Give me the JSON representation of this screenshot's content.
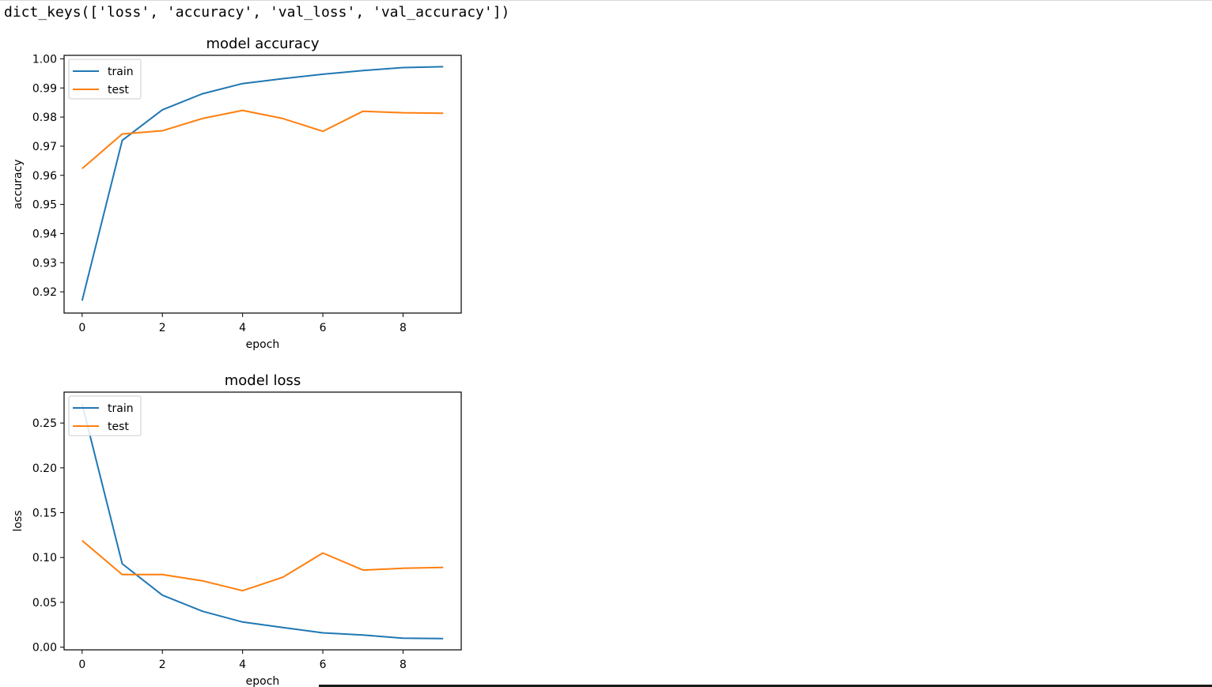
{
  "output": {
    "text": "dict_keys(['loss', 'accuracy', 'val_loss', 'val_accuracy'])"
  },
  "colors": {
    "train": "#1f77b4",
    "test": "#ff7f0e",
    "frame": "#000000",
    "background": "#ffffff"
  },
  "chart_data": [
    {
      "type": "line",
      "title": "model accuracy",
      "xlabel": "epoch",
      "ylabel": "accuracy",
      "x": [
        0,
        1,
        2,
        3,
        4,
        5,
        6,
        7,
        8,
        9
      ],
      "xlim": [
        -0.45,
        9.45
      ],
      "ylim": [
        0.9127,
        1.0012
      ],
      "xticks": [
        0,
        2,
        4,
        6,
        8
      ],
      "xtick_labels": [
        "0",
        "2",
        "4",
        "6",
        "8"
      ],
      "yticks": [
        0.92,
        0.93,
        0.94,
        0.95,
        0.96,
        0.97,
        0.98,
        0.99,
        1.0
      ],
      "ytick_labels": [
        "0.92",
        "0.93",
        "0.94",
        "0.95",
        "0.96",
        "0.97",
        "0.98",
        "0.99",
        "1.00"
      ],
      "grid": false,
      "legend_position": "upper left",
      "series": [
        {
          "name": "train",
          "color": "#1f77b4",
          "values": [
            0.917,
            0.972,
            0.9825,
            0.988,
            0.9915,
            0.9932,
            0.9947,
            0.996,
            0.997,
            0.9973
          ]
        },
        {
          "name": "test",
          "color": "#ff7f0e",
          "values": [
            0.9623,
            0.9742,
            0.9753,
            0.9795,
            0.9823,
            0.9795,
            0.9751,
            0.982,
            0.9815,
            0.9813
          ]
        }
      ]
    },
    {
      "type": "line",
      "title": "model loss",
      "xlabel": "epoch",
      "ylabel": "loss",
      "x": [
        0,
        1,
        2,
        3,
        4,
        5,
        6,
        7,
        8,
        9
      ],
      "xlim": [
        -0.45,
        9.45
      ],
      "ylim": [
        -0.003,
        0.2845
      ],
      "xticks": [
        0,
        2,
        4,
        6,
        8
      ],
      "xtick_labels": [
        "0",
        "2",
        "4",
        "6",
        "8"
      ],
      "yticks": [
        0.0,
        0.05,
        0.1,
        0.15,
        0.2,
        0.25
      ],
      "ytick_labels": [
        "0.00",
        "0.05",
        "0.10",
        "0.15",
        "0.20",
        "0.25"
      ],
      "grid": false,
      "legend_position": "upper left",
      "series": [
        {
          "name": "train",
          "color": "#1f77b4",
          "values": [
            0.271,
            0.093,
            0.058,
            0.04,
            0.028,
            0.022,
            0.016,
            0.0135,
            0.01,
            0.0095
          ]
        },
        {
          "name": "test",
          "color": "#ff7f0e",
          "values": [
            0.119,
            0.081,
            0.081,
            0.074,
            0.063,
            0.078,
            0.105,
            0.086,
            0.088,
            0.089
          ]
        }
      ]
    }
  ]
}
